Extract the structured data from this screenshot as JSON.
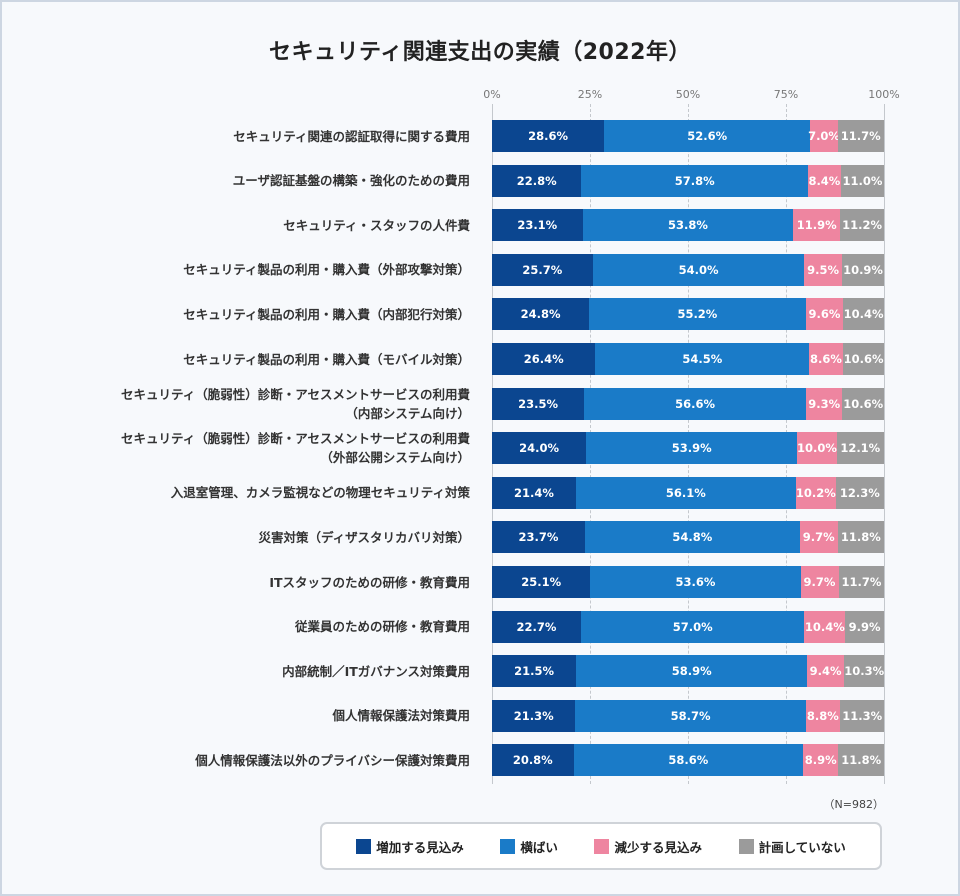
{
  "chart_data": {
    "type": "bar",
    "orientation": "horizontal",
    "stacked": true,
    "title": "セキュリティ関連支出の実績（2022年）",
    "xlabel": "",
    "ylabel": "",
    "xlim": [
      0,
      100
    ],
    "x_ticks": [
      "0%",
      "25%",
      "50%",
      "75%",
      "100%"
    ],
    "grid": true,
    "legend_position": "bottom",
    "note": "（N=982）",
    "categories": [
      [
        "セキュリティ関連の認証取得に関する費用"
      ],
      [
        "ユーザ認証基盤の構築・強化のための費用"
      ],
      [
        "セキュリティ・スタッフの人件費"
      ],
      [
        "セキュリティ製品の利用・購入費（外部攻撃対策）"
      ],
      [
        "セキュリティ製品の利用・購入費（内部犯行対策）"
      ],
      [
        "セキュリティ製品の利用・購入費（モバイル対策）"
      ],
      [
        "セキュリティ（脆弱性）診断・アセスメントサービスの利用費",
        "（内部システム向け）"
      ],
      [
        "セキュリティ（脆弱性）診断・アセスメントサービスの利用費",
        "（外部公開システム向け）"
      ],
      [
        "入退室管理、カメラ監視などの物理セキュリティ対策"
      ],
      [
        "災害対策（ディザスタリカバリ対策）"
      ],
      [
        "ITスタッフのための研修・教育費用"
      ],
      [
        "従業員のための研修・教育費用"
      ],
      [
        "内部統制／ITガバナンス対策費用"
      ],
      [
        "個人情報保護法対策費用"
      ],
      [
        "個人情報保護法以外のプライバシー保護対策費用"
      ]
    ],
    "series": [
      {
        "name": "増加する見込み",
        "color": "#0b4690",
        "values": [
          28.6,
          22.8,
          23.1,
          25.7,
          24.8,
          26.4,
          23.5,
          24.0,
          21.4,
          23.7,
          25.1,
          22.7,
          21.5,
          21.3,
          20.8
        ]
      },
      {
        "name": "横ばい",
        "color": "#1a7bc8",
        "values": [
          52.6,
          57.8,
          53.8,
          54.0,
          55.2,
          54.5,
          56.6,
          53.9,
          56.1,
          54.8,
          53.6,
          57.0,
          58.9,
          58.7,
          58.6
        ]
      },
      {
        "name": "減少する見込み",
        "color": "#ee85a0",
        "values": [
          7.0,
          8.4,
          11.9,
          9.5,
          9.6,
          8.6,
          9.3,
          10.0,
          10.2,
          9.7,
          9.7,
          10.4,
          9.4,
          8.8,
          8.9
        ]
      },
      {
        "name": "計画していない",
        "color": "#9b9b9b",
        "values": [
          11.7,
          11.0,
          11.2,
          10.9,
          10.4,
          10.6,
          10.6,
          12.1,
          12.3,
          11.8,
          11.7,
          9.9,
          10.3,
          11.3,
          11.8
        ]
      }
    ]
  }
}
